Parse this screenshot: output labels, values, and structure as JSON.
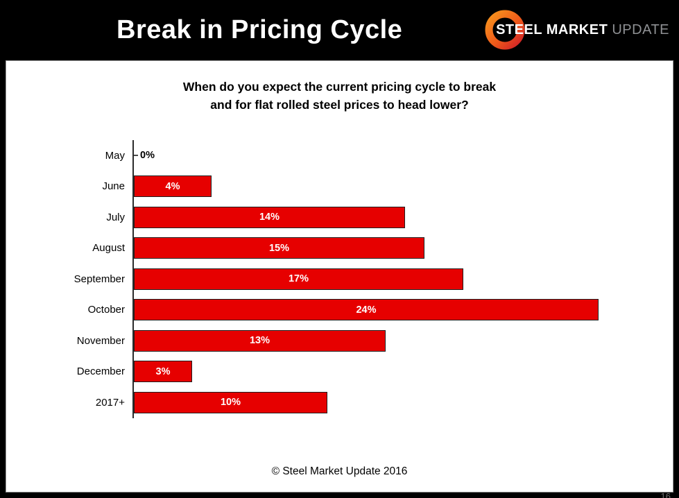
{
  "header": {
    "title": "Break in Pricing Cycle",
    "logo": {
      "steel": "STEEL",
      "market": "MARKET",
      "update": "UPDATE"
    }
  },
  "chart_data": {
    "type": "bar",
    "orientation": "horizontal",
    "title_line1": "When do you expect the current pricing cycle to break",
    "title_line2": "and for flat rolled steel prices to head lower?",
    "categories": [
      "May",
      "June",
      "July",
      "August",
      "September",
      "October",
      "November",
      "December",
      "2017+"
    ],
    "values": [
      0,
      4,
      14,
      15,
      17,
      24,
      13,
      3,
      10
    ],
    "labels": [
      "0%",
      "4%",
      "14%",
      "15%",
      "17%",
      "24%",
      "13%",
      "3%",
      "10%"
    ],
    "xlim": [
      0,
      24
    ],
    "bar_color": "#e60000",
    "bar_border_color": "#1f1f1f",
    "grid": false,
    "legend": "none"
  },
  "footer": {
    "credit": "© Steel Market Update 2016",
    "page_number": "16"
  }
}
